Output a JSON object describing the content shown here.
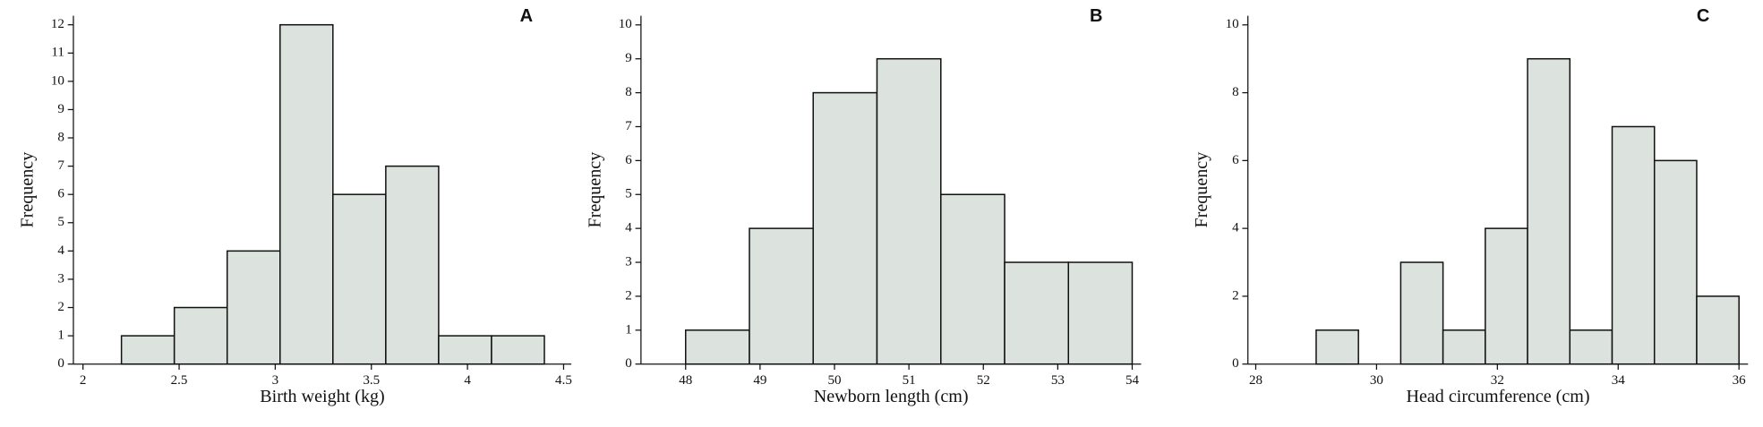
{
  "chart_data": [
    {
      "type": "histogram",
      "label": "A",
      "xlabel": "Birth weight (kg)",
      "ylabel": "Frequency",
      "bins": [
        2.2,
        2.475,
        2.75,
        3.025,
        3.3,
        3.575,
        3.85,
        4.125,
        4.4
      ],
      "values": [
        1,
        2,
        4,
        12,
        6,
        7,
        1,
        1
      ],
      "color": "#dce3df",
      "xlim": [
        1.95,
        4.54
      ],
      "xticks": [
        2,
        2.5,
        3,
        3.5,
        4,
        4.5
      ],
      "ylim": [
        0,
        12.32
      ],
      "yticks": [
        0,
        1,
        2,
        3,
        4,
        5,
        6,
        7,
        8,
        9,
        10,
        11,
        12
      ]
    },
    {
      "type": "histogram",
      "label": "B",
      "xlabel": "Newborn length (cm)",
      "ylabel": "Frequency",
      "bins": [
        48,
        48.857,
        49.714,
        50.571,
        51.429,
        52.286,
        53.143,
        54
      ],
      "values": [
        1,
        4,
        8,
        9,
        5,
        3,
        3
      ],
      "color": "#dce3df",
      "xlim": [
        47.4,
        54.12
      ],
      "xticks": [
        48,
        49,
        50,
        51,
        52,
        53,
        54
      ],
      "ylim": [
        0,
        10.27
      ],
      "yticks": [
        0,
        1,
        2,
        3,
        4,
        5,
        6,
        7,
        8,
        9,
        10
      ]
    },
    {
      "type": "histogram",
      "label": "C",
      "xlabel": "Head circumference (cm)",
      "ylabel": "Frequency",
      "bins": [
        29,
        29.7,
        30.4,
        31.1,
        31.8,
        32.5,
        33.2,
        33.9,
        34.6,
        35.3,
        36
      ],
      "values": [
        1,
        0,
        3,
        1,
        4,
        9,
        1,
        7,
        6,
        2
      ],
      "color": "#dce3df",
      "xlim": [
        27.87,
        36.15
      ],
      "xticks": [
        28,
        30,
        32,
        34,
        36
      ],
      "ylim": [
        0,
        10.27
      ],
      "yticks": [
        0,
        2,
        4,
        6,
        8,
        10
      ]
    }
  ]
}
